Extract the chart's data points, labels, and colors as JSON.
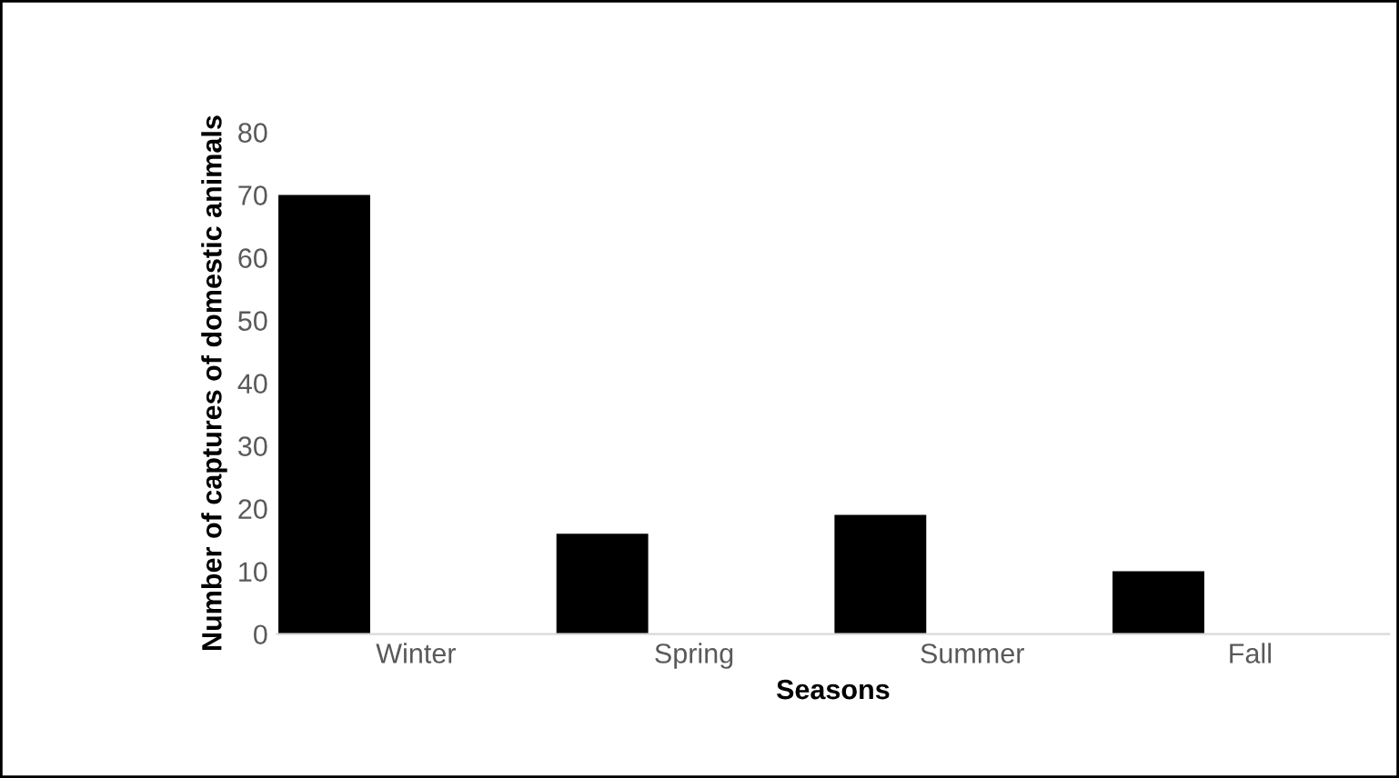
{
  "chart_data": {
    "type": "bar",
    "xlabel": "Seasons",
    "ylabel": "Number of captures of domestic animals",
    "categories": [
      "Winter",
      "Spring",
      "Summer",
      "Fall"
    ],
    "values": [
      70,
      16,
      19,
      10
    ],
    "color": "#000000",
    "ylim": [
      0,
      80
    ],
    "yticks": [
      0,
      10,
      20,
      30,
      40,
      50,
      60,
      70,
      80
    ],
    "grid": false,
    "legend": false
  }
}
